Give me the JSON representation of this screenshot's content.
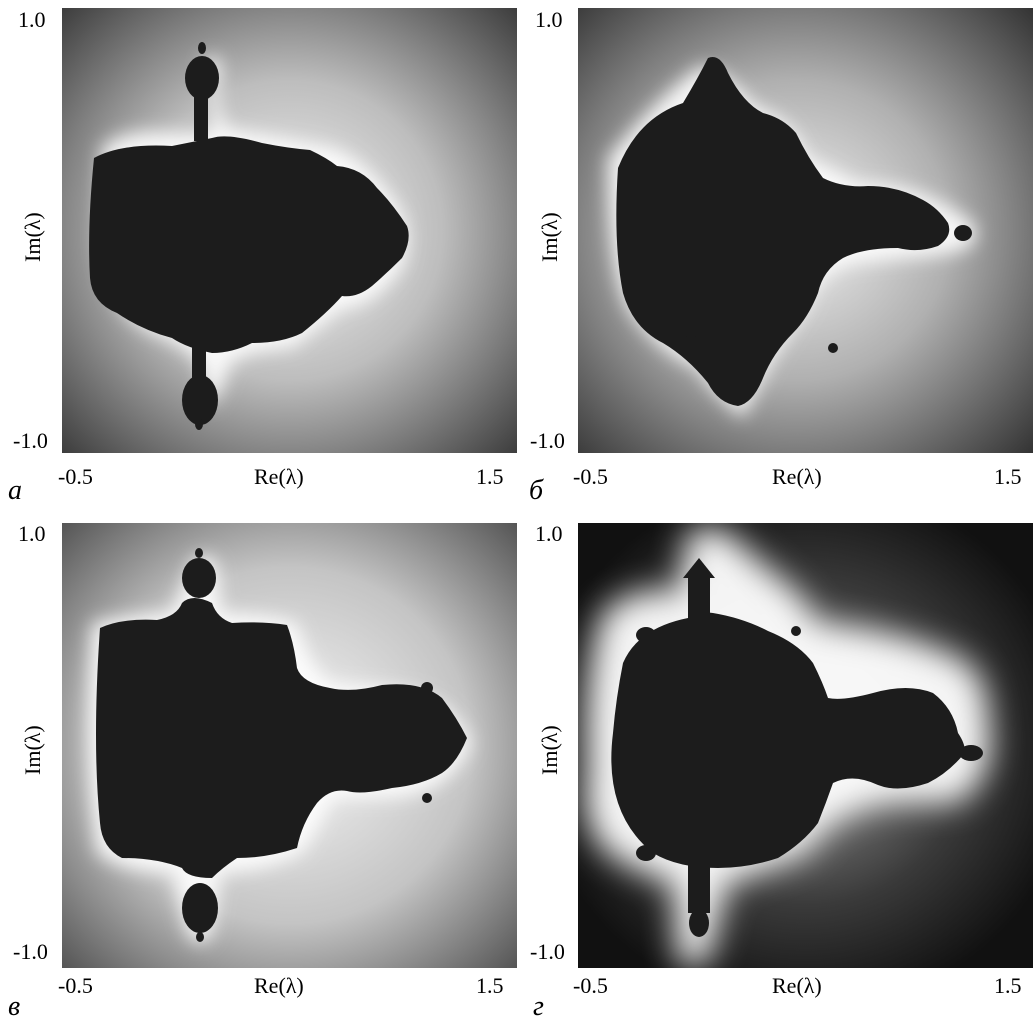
{
  "panels": [
    {
      "id": "a",
      "letter": "a",
      "ylabel": "Im(λ)",
      "xlabel": "Re(λ)",
      "y_top_tick": "1.0",
      "y_bottom_tick": "-1.0",
      "x_left_tick": "-0.5",
      "x_right_tick": "1.5"
    },
    {
      "id": "b",
      "letter": "б",
      "ylabel": "Im(λ)",
      "xlabel": "Re(λ)",
      "y_top_tick": "1.0",
      "y_bottom_tick": "-1.0",
      "x_left_tick": "-0.5",
      "x_right_tick": "1.5"
    },
    {
      "id": "c",
      "letter": "в",
      "ylabel": "Im(λ)",
      "xlabel": "Re(λ)",
      "y_top_tick": "1.0",
      "y_bottom_tick": "-1.0",
      "x_left_tick": "-0.5",
      "x_right_tick": "1.5"
    },
    {
      "id": "d",
      "letter": "г",
      "ylabel": "Im(λ)",
      "xlabel": "Re(λ)",
      "y_top_tick": "1.0",
      "y_bottom_tick": "-1.0",
      "x_left_tick": "-0.5",
      "x_right_tick": "1.5"
    }
  ],
  "colors": {
    "set": "#1a1a1a",
    "halo": "#ffffff",
    "background": "#2b2b2b"
  }
}
